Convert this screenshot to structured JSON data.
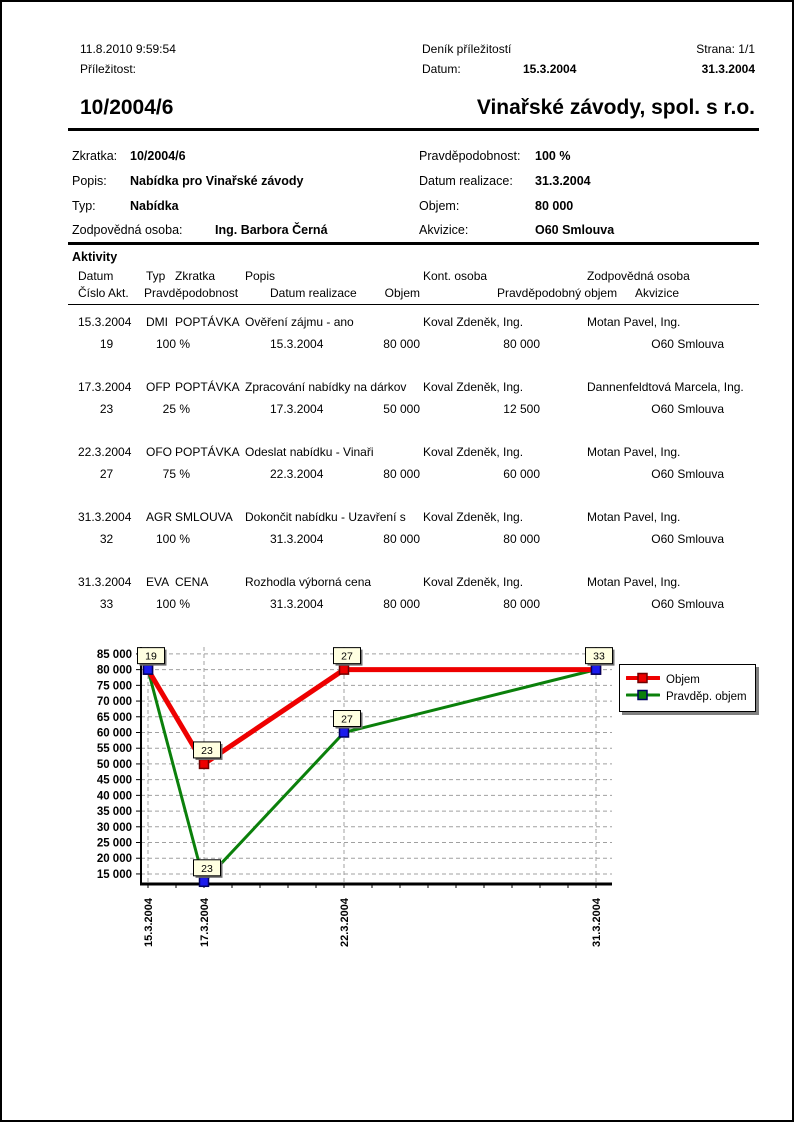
{
  "header": {
    "printed": "11.8.2010  9:59:54",
    "opportunity_label": "Příležitost:",
    "report_title": "Deník příležitostí",
    "date_label": "Datum:",
    "date_from": "15.3.2004",
    "date_to": "31.3.2004",
    "page": "Strana: 1/1"
  },
  "title": {
    "code": "10/2004/6",
    "company": "Vinařské závody, spol. s r.o."
  },
  "details": {
    "left": [
      {
        "label": "Zkratka:",
        "value": "10/2004/6"
      },
      {
        "label": "Popis:",
        "value": "Nabídka pro Vinařské závody"
      },
      {
        "label": "Typ:",
        "value": "Nabídka"
      },
      {
        "label": "Zodpovědná osoba:",
        "value": "Ing. Barbora Černá"
      }
    ],
    "right": [
      {
        "label": "Pravděpodobnost:",
        "value": "100 %"
      },
      {
        "label": "Datum realizace:",
        "value": "31.3.2004"
      },
      {
        "label": "Objem:",
        "value": "80 000"
      },
      {
        "label": "Akvizice:",
        "value": "O60 Smlouva"
      }
    ]
  },
  "activities": {
    "section_title": "Aktivity",
    "columns_line1": [
      "Datum",
      "Typ",
      "Zkratka",
      "Popis",
      "Kont. osoba",
      "Zodpovědná osoba"
    ],
    "columns_line2": [
      "Číslo Akt.",
      "Pravděpodobnost",
      "Datum realizace",
      "Objem",
      "Pravděpodobný objem",
      "Akvizice"
    ],
    "rows": [
      {
        "datum": "15.3.2004",
        "typ": "DMI",
        "zkratka": "POPTÁVKA",
        "popis": "Ověření zájmu - ano",
        "kont_osoba": "Koval Zdeněk, Ing.",
        "zodpovedna_osoba": "Motan Pavel, Ing.",
        "cislo_akt": "19",
        "pravdepodobnost": "100 %",
        "datum_realizace": "15.3.2004",
        "objem": "80 000",
        "pravdepodobny_objem": "80 000",
        "akvizice": "O60 Smlouva"
      },
      {
        "datum": "17.3.2004",
        "typ": "OFP",
        "zkratka": "POPTÁVKA",
        "popis": "Zpracování nabídky na dárkov",
        "kont_osoba": "Koval Zdeněk, Ing.",
        "zodpovedna_osoba": "Dannenfeldtová Marcela, Ing.",
        "cislo_akt": "23",
        "pravdepodobnost": "25 %",
        "datum_realizace": "17.3.2004",
        "objem": "50 000",
        "pravdepodobny_objem": "12 500",
        "akvizice": "O60 Smlouva"
      },
      {
        "datum": "22.3.2004",
        "typ": "OFO",
        "zkratka": "POPTÁVKA",
        "popis": "Odeslat nabídku - Vinaři",
        "kont_osoba": "Koval Zdeněk, Ing.",
        "zodpovedna_osoba": "Motan Pavel, Ing.",
        "cislo_akt": "27",
        "pravdepodobnost": "75 %",
        "datum_realizace": "22.3.2004",
        "objem": "80 000",
        "pravdepodobny_objem": "60 000",
        "akvizice": "O60 Smlouva"
      },
      {
        "datum": "31.3.2004",
        "typ": "AGR",
        "zkratka": "SMLOUVA",
        "popis": "Dokončit nabídku - Uzavření s",
        "kont_osoba": "Koval Zdeněk, Ing.",
        "zodpovedna_osoba": "Motan Pavel, Ing.",
        "cislo_akt": "32",
        "pravdepodobnost": "100 %",
        "datum_realizace": "31.3.2004",
        "objem": "80 000",
        "pravdepodobny_objem": "80 000",
        "akvizice": "O60 Smlouva"
      },
      {
        "datum": "31.3.2004",
        "typ": "EVA",
        "zkratka": "CENA",
        "popis": "Rozhodla výborná cena",
        "kont_osoba": "Koval Zdeněk, Ing.",
        "zodpovedna_osoba": "Motan Pavel, Ing.",
        "cislo_akt": "33",
        "pravdepodobnost": "100 %",
        "datum_realizace": "31.3.2004",
        "objem": "80 000",
        "pravdepodobny_objem": "80 000",
        "akvizice": "O60 Smlouva"
      }
    ]
  },
  "chart_data": {
    "type": "line",
    "x_labels": [
      "15.3.2004",
      "17.3.2004",
      "22.3.2004",
      "31.3.2004"
    ],
    "x_day_offsets": [
      0,
      2,
      7,
      16
    ],
    "x_total_days": 16,
    "y_ticks": [
      15000,
      20000,
      25000,
      30000,
      35000,
      40000,
      45000,
      50000,
      55000,
      60000,
      65000,
      70000,
      75000,
      80000,
      85000
    ],
    "ylim": [
      11800,
      87200
    ],
    "grid": true,
    "legend_position": "right",
    "series": [
      {
        "name": "Objem",
        "color": "#ee0000",
        "marker_color": "#ee0000",
        "marker_border": "#700000",
        "line_width": 5,
        "values": [
          80000,
          50000,
          80000,
          80000
        ],
        "point_labels": [
          "19",
          "23",
          "27",
          "33"
        ]
      },
      {
        "name": "Pravděp. objem",
        "color": "#0b800b",
        "marker_color": "#1a1aee",
        "marker_border": "#000060",
        "line_width": 3,
        "values": [
          80000,
          12500,
          60000,
          80000
        ],
        "point_labels": [
          null,
          "23",
          "27",
          null
        ]
      }
    ],
    "colors": {
      "grid": "#a0a0a0",
      "axis": "#000000",
      "label_box_fill": "#ffffe1",
      "label_box_border": "#000000",
      "shadow": "#707070"
    }
  }
}
